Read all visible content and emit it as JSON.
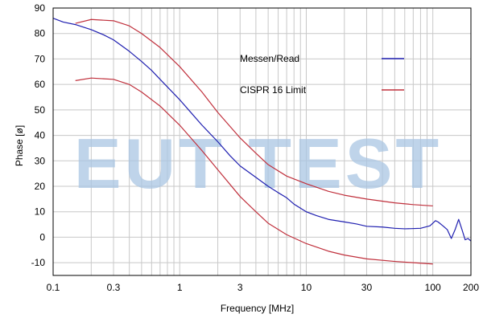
{
  "chart_data": {
    "type": "line",
    "xlabel": "Frequency [MHz]",
    "ylabel": "Phase [ø]",
    "x_scale": "log",
    "xlim": [
      0.1,
      200
    ],
    "ylim": [
      -15,
      90
    ],
    "grid": true,
    "legend_position": "top-right",
    "x_ticks": [
      {
        "value": 0.1,
        "label": "0.1"
      },
      {
        "value": 0.3,
        "label": "0.3"
      },
      {
        "value": 1,
        "label": "1"
      },
      {
        "value": 3,
        "label": "3"
      },
      {
        "value": 10,
        "label": "10"
      },
      {
        "value": 30,
        "label": "30"
      },
      {
        "value": 100,
        "label": "100"
      },
      {
        "value": 200,
        "label": "200"
      }
    ],
    "y_ticks": [
      {
        "value": 90,
        "label": "90"
      },
      {
        "value": 80,
        "label": "80"
      },
      {
        "value": 70,
        "label": "70"
      },
      {
        "value": 60,
        "label": "60"
      },
      {
        "value": 50,
        "label": "50"
      },
      {
        "value": 40,
        "label": "40"
      },
      {
        "value": 30,
        "label": "30"
      },
      {
        "value": 20,
        "label": "20"
      },
      {
        "value": 10,
        "label": "10"
      },
      {
        "value": 0,
        "label": "0"
      },
      {
        "value": -10,
        "label": "-10"
      }
    ],
    "series": [
      {
        "name": "Messen/Read",
        "color": "#1f1fb0",
        "points": [
          [
            0.1,
            86
          ],
          [
            0.12,
            84.5
          ],
          [
            0.15,
            83.5
          ],
          [
            0.2,
            81.5
          ],
          [
            0.25,
            79.5
          ],
          [
            0.3,
            77.5
          ],
          [
            0.4,
            73
          ],
          [
            0.5,
            69
          ],
          [
            0.6,
            65.5
          ],
          [
            0.7,
            62
          ],
          [
            0.8,
            59
          ],
          [
            1,
            54
          ],
          [
            1.2,
            49.5
          ],
          [
            1.5,
            44
          ],
          [
            2,
            37.5
          ],
          [
            2.5,
            32
          ],
          [
            3,
            28
          ],
          [
            4,
            23.5
          ],
          [
            5,
            20
          ],
          [
            6,
            17.5
          ],
          [
            7,
            15.5
          ],
          [
            8,
            13
          ],
          [
            10,
            10
          ],
          [
            12,
            8.5
          ],
          [
            15,
            7
          ],
          [
            20,
            6
          ],
          [
            25,
            5.2
          ],
          [
            30,
            4.3
          ],
          [
            40,
            4
          ],
          [
            50,
            3.5
          ],
          [
            60,
            3.3
          ],
          [
            80,
            3.5
          ],
          [
            95,
            4.5
          ],
          [
            100,
            5.5
          ],
          [
            105,
            6.5
          ],
          [
            110,
            6
          ],
          [
            120,
            4.5
          ],
          [
            130,
            3
          ],
          [
            140,
            -0.5
          ],
          [
            150,
            3
          ],
          [
            160,
            7
          ],
          [
            170,
            3
          ],
          [
            180,
            -1
          ],
          [
            190,
            -0.5
          ],
          [
            200,
            -1.5
          ]
        ]
      },
      {
        "name": "CISPR 16 Limit",
        "color": "#c0303c",
        "points": [
          [
            0.15,
            84
          ],
          [
            0.2,
            85.5
          ],
          [
            0.3,
            85
          ],
          [
            0.4,
            83
          ],
          [
            0.5,
            80
          ],
          [
            0.7,
            74.5
          ],
          [
            1,
            67
          ],
          [
            1.5,
            57
          ],
          [
            2,
            49
          ],
          [
            3,
            39
          ],
          [
            4,
            33
          ],
          [
            5,
            28.5
          ],
          [
            7,
            24
          ],
          [
            10,
            21
          ],
          [
            15,
            18
          ],
          [
            20,
            16.5
          ],
          [
            30,
            15
          ],
          [
            50,
            13.5
          ],
          [
            70,
            12.8
          ],
          [
            100,
            12.3
          ]
        ]
      },
      {
        "name": "CISPR 16 Limit (lower)",
        "color": "#c0303c",
        "points": [
          [
            0.15,
            61.5
          ],
          [
            0.2,
            62.5
          ],
          [
            0.3,
            62
          ],
          [
            0.4,
            60
          ],
          [
            0.5,
            57
          ],
          [
            0.7,
            51.5
          ],
          [
            1,
            44
          ],
          [
            1.5,
            34
          ],
          [
            2,
            26.5
          ],
          [
            3,
            16
          ],
          [
            4,
            10
          ],
          [
            5,
            5.5
          ],
          [
            7,
            1
          ],
          [
            10,
            -2.5
          ],
          [
            15,
            -5.5
          ],
          [
            20,
            -7
          ],
          [
            30,
            -8.5
          ],
          [
            50,
            -9.5
          ],
          [
            70,
            -10
          ],
          [
            100,
            -10.5
          ]
        ]
      }
    ],
    "legend": [
      {
        "label": "Messen/Read",
        "color": "#1f1fb0"
      },
      {
        "label": "CISPR 16 Limit",
        "color": "#c0303c"
      }
    ],
    "watermark": {
      "text": "EUT TEST",
      "color": "#a9c6e3"
    }
  }
}
